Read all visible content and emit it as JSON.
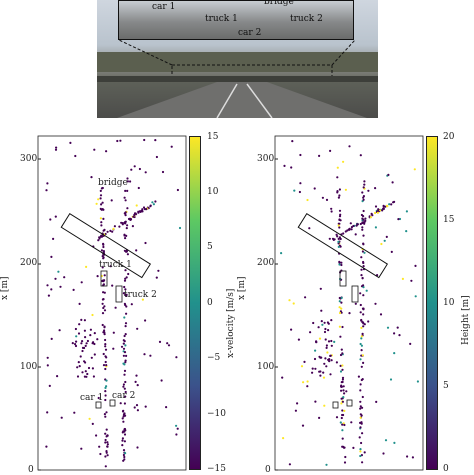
{
  "photo": {
    "labels": [
      "car 1",
      "bridge",
      "truck 1",
      "truck 2",
      "car 2"
    ]
  },
  "left_plot": {
    "annotations": [
      "bridge",
      "truck 1",
      "truck 2",
      "car 1",
      "car 2"
    ],
    "y_ticks": [
      "300",
      "200",
      "100",
      "0"
    ],
    "y_label": "x [m]",
    "colorbar_ticks": [
      "15",
      "10",
      "5",
      "0",
      "−5",
      "−10",
      "−15"
    ],
    "colorbar_label": "x-velocity [m/s]"
  },
  "right_plot": {
    "y_ticks": [
      "300",
      "200",
      "100",
      "0"
    ],
    "y_label": "x [m]",
    "colorbar_ticks": [
      "20",
      "15",
      "10",
      "5",
      "0"
    ],
    "colorbar_label": "Height [m]"
  },
  "colors": {
    "viridis_low": "#440154",
    "viridis_mid": "#21918c",
    "viridis_high": "#fde725"
  }
}
